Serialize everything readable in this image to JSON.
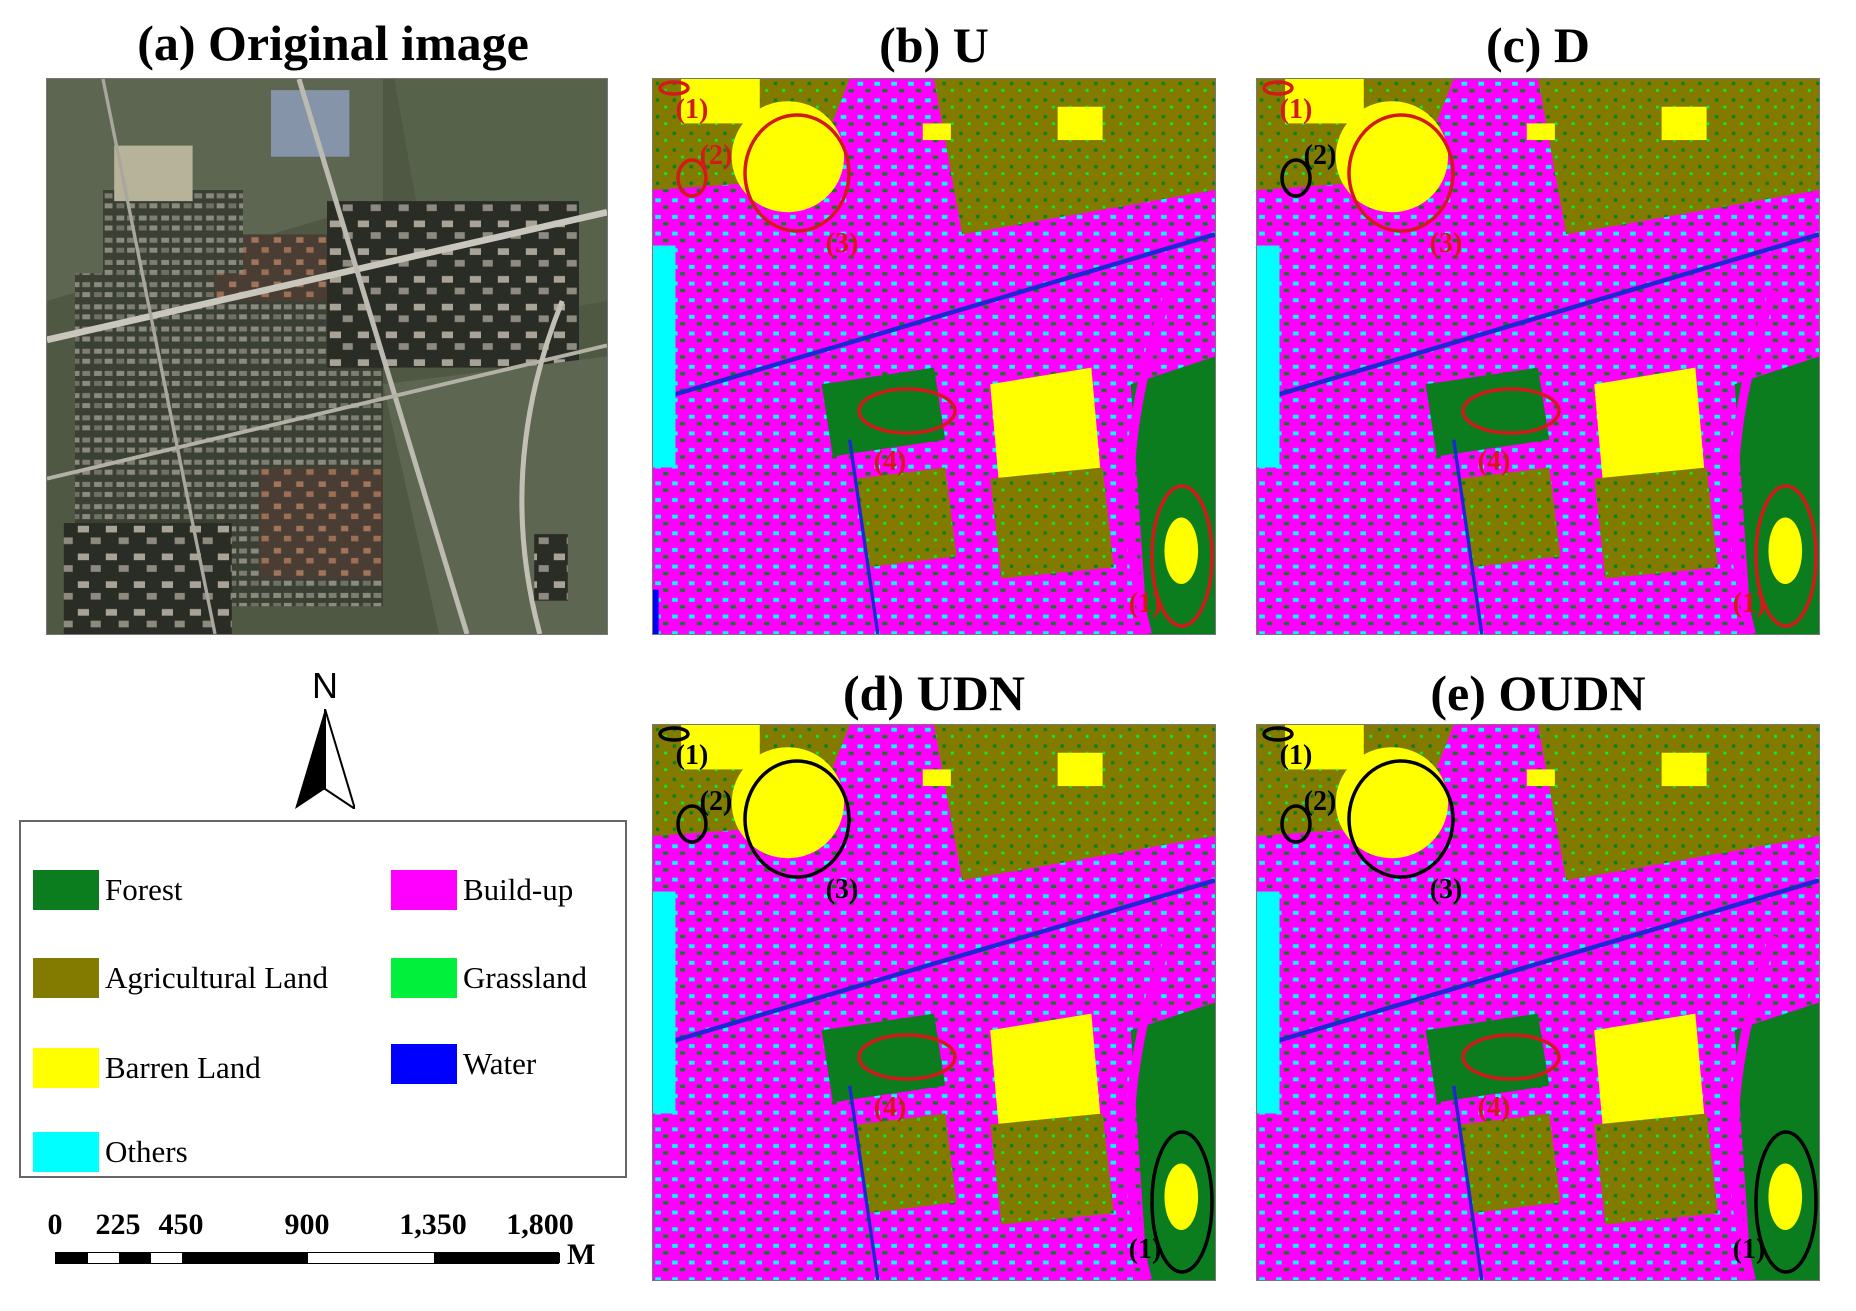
{
  "panels": {
    "a": {
      "title": "(a) Original image"
    },
    "b": {
      "title": "(b) U"
    },
    "c": {
      "title": "(c) D"
    },
    "d": {
      "title": "(d) UDN"
    },
    "e": {
      "title": "(e) OUDN"
    }
  },
  "annotations": [
    "(1)",
    "(2)",
    "(3)",
    "(4)",
    "(1)"
  ],
  "annotation_colors": {
    "b": [
      "#d31a1a",
      "#d31a1a",
      "#d31a1a",
      "#d31a1a",
      "#d31a1a"
    ],
    "c": [
      "#d31a1a",
      "#000000",
      "#d31a1a",
      "#d31a1a",
      "#d31a1a"
    ],
    "d": [
      "#000000",
      "#000000",
      "#000000",
      "#d31a1a",
      "#000000"
    ],
    "e": [
      "#000000",
      "#000000",
      "#000000",
      "#d31a1a",
      "#000000"
    ]
  },
  "north_arrow": {
    "label": "N"
  },
  "legend": {
    "items": [
      {
        "label": "Forest",
        "color": "#0c7d1e"
      },
      {
        "label": "Build-up",
        "color": "#ff00ff"
      },
      {
        "label": "Agricultural Land",
        "color": "#827b00"
      },
      {
        "label": "Grassland",
        "color": "#00f03c"
      },
      {
        "label": "Barren Land",
        "color": "#ffff00"
      },
      {
        "label": "Water",
        "color": "#0000ff"
      },
      {
        "label": "Others",
        "color": "#00ffff"
      }
    ]
  },
  "scale_bar": {
    "labels": [
      "0",
      "225",
      "450",
      "900",
      "1,350",
      "1,800"
    ],
    "values": [
      0,
      225,
      450,
      900,
      1350,
      1800
    ],
    "unit": "M"
  }
}
